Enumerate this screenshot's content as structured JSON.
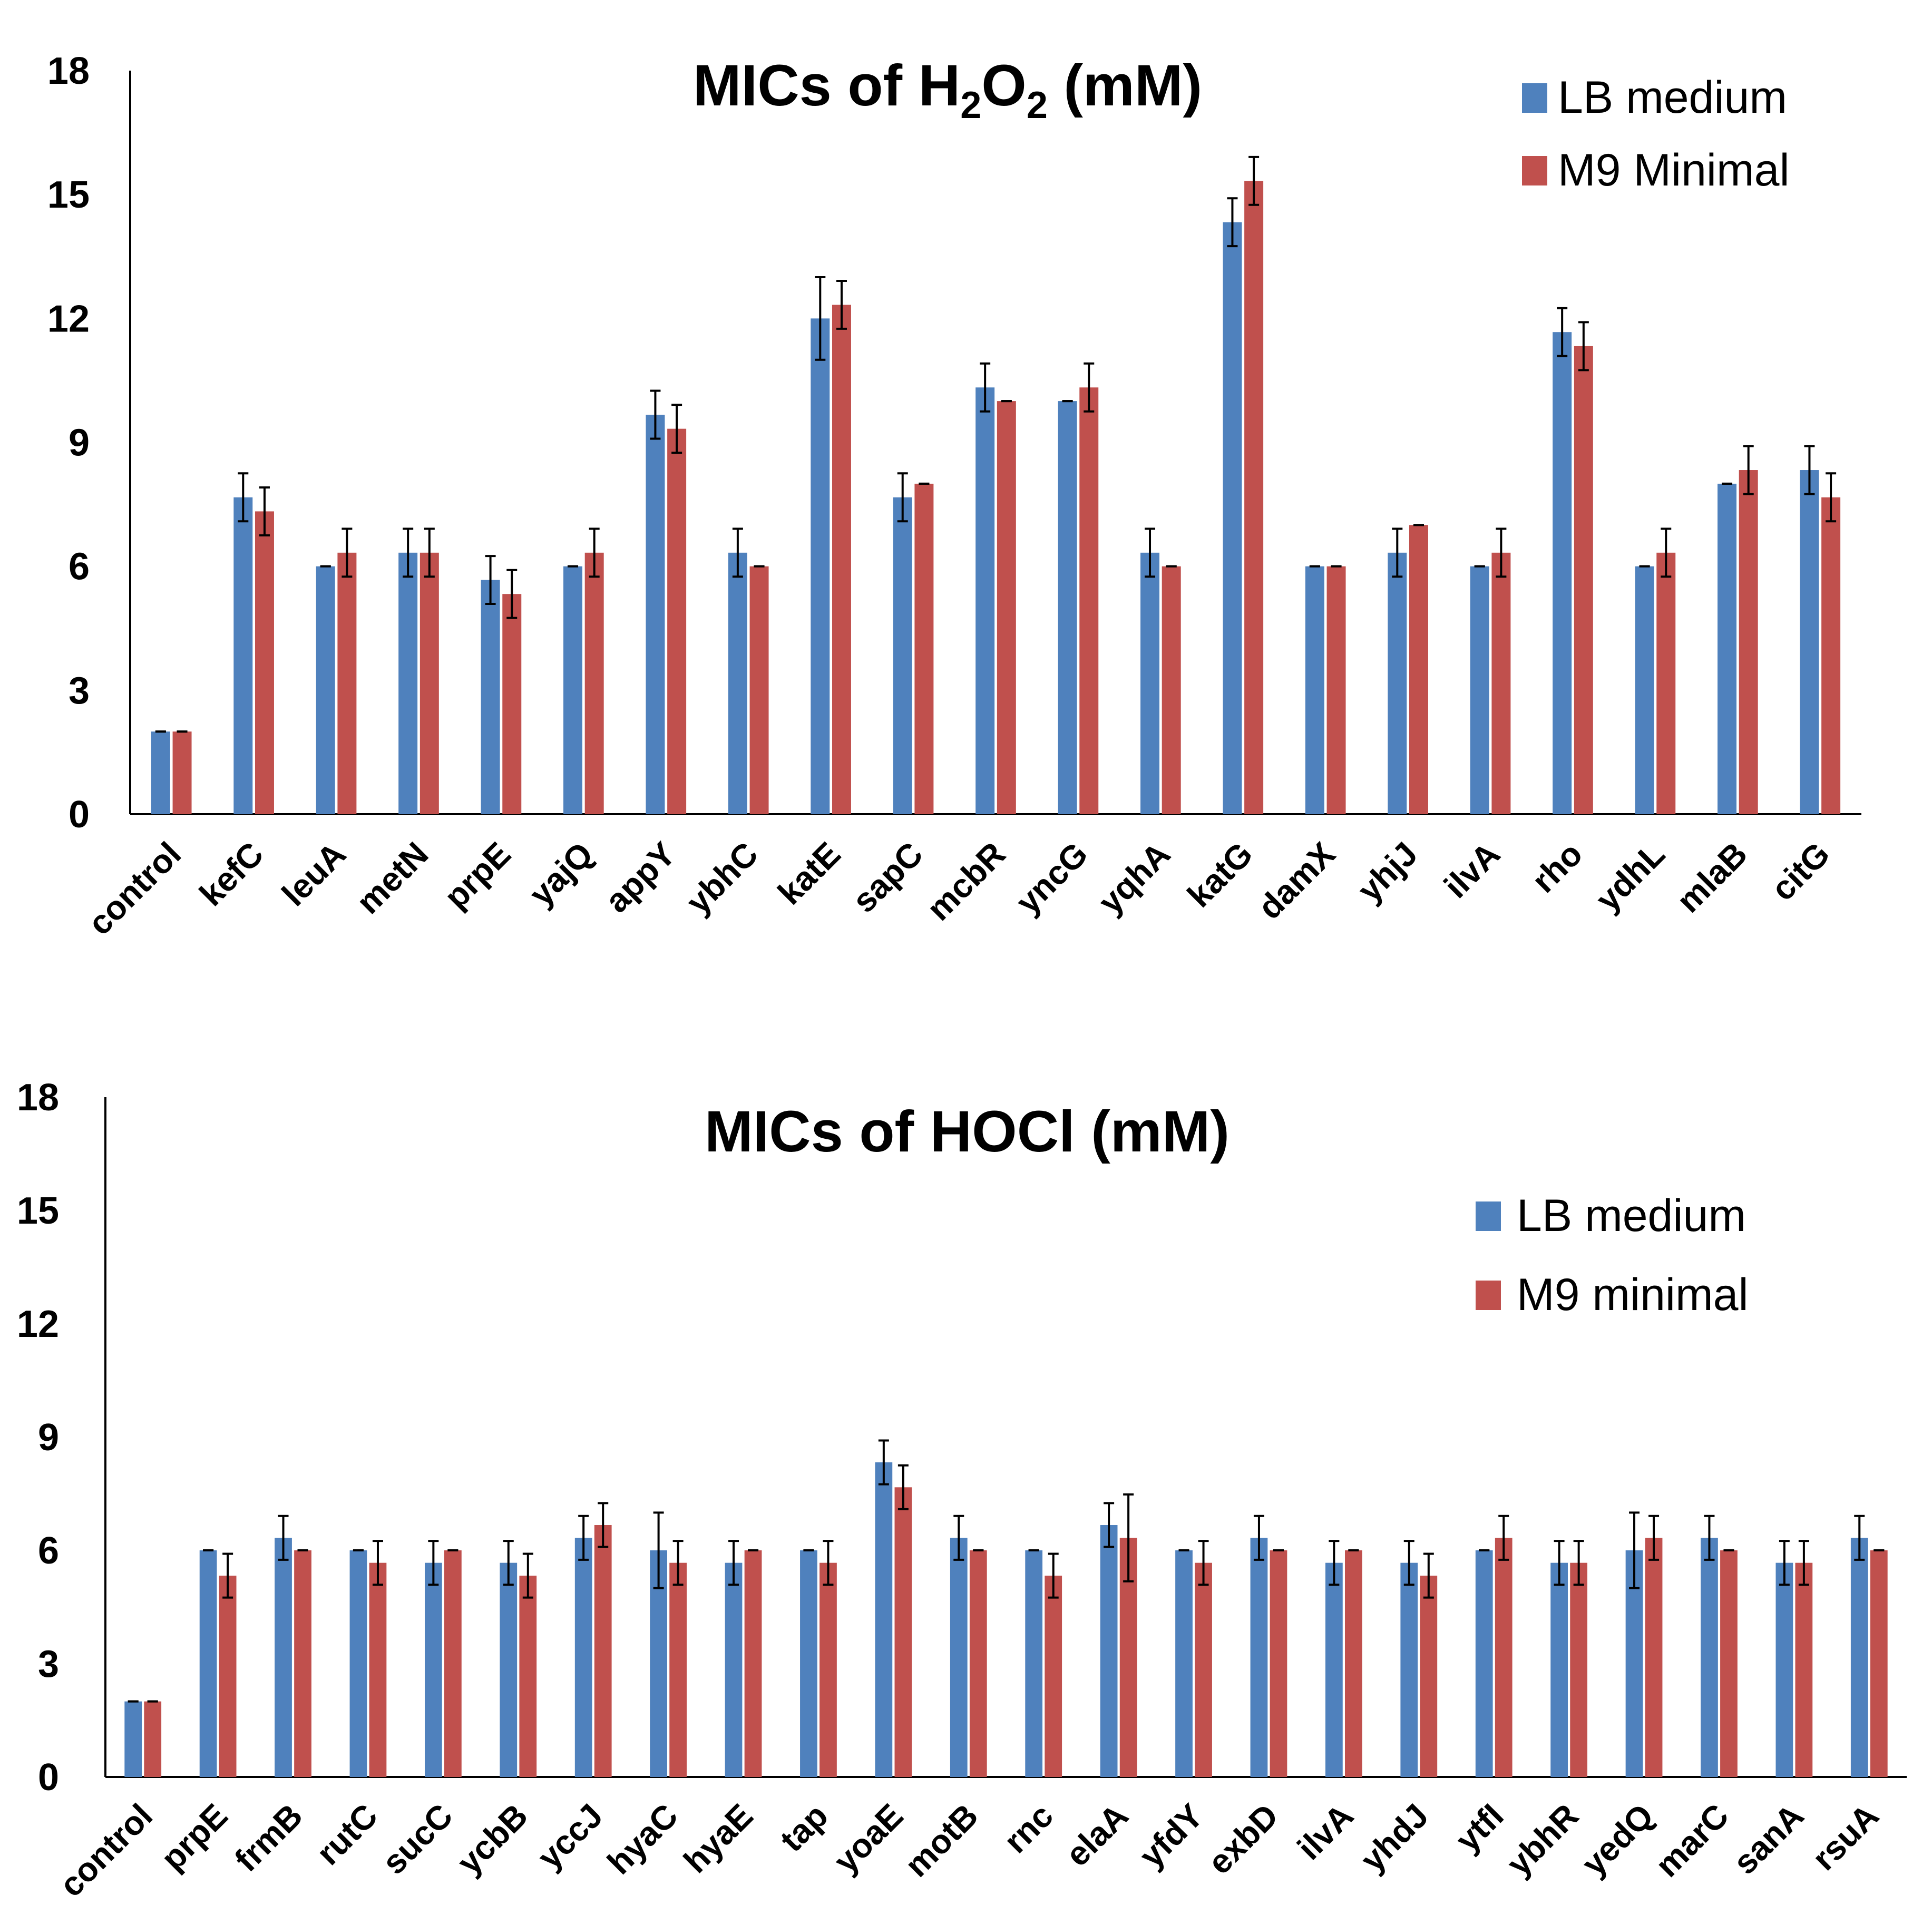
{
  "colors": {
    "lb": "#4F81BD",
    "m9": "#C0504D",
    "axis": "#000000",
    "error": "#000000"
  },
  "chart_data": [
    {
      "type": "bar",
      "title": "MICs of H2O2 (mM)",
      "title_parts": {
        "pre": "MICs of H",
        "sub1": "2",
        "mid": "O",
        "sub2": "2",
        "post": " (mM)"
      },
      "xlabel": "",
      "ylabel": "",
      "ylim": [
        0,
        18
      ],
      "yticks": [
        "0",
        "3",
        "6",
        "9",
        "12",
        "15",
        "18"
      ],
      "grid": false,
      "legend_position": "top-right",
      "categories": [
        "control",
        "kefC",
        "leuA",
        "metN",
        "prpE",
        "yajQ",
        "appY",
        "ybhC",
        "katE",
        "sapC",
        "mcbR",
        "yncG",
        "yqhA",
        "katG",
        "damX",
        "yhjJ",
        "ilvA",
        "rho",
        "ydhL",
        "mlaB",
        "citG"
      ],
      "series": [
        {
          "name": "LB medium",
          "color_key": "lb",
          "values": [
            2,
            7.67,
            6,
            6.33,
            5.67,
            6,
            9.67,
            6.33,
            12,
            7.67,
            10.33,
            10,
            6.33,
            14.33,
            6,
            6.33,
            6,
            11.67,
            6,
            8,
            8.33
          ],
          "errors": [
            0,
            0.58,
            0,
            0.58,
            0.58,
            0,
            0.58,
            0.58,
            1,
            0.58,
            0.58,
            0,
            0.58,
            0.58,
            0,
            0.58,
            0,
            0.58,
            0,
            0,
            0.58
          ]
        },
        {
          "name": "M9 Minimal",
          "color_key": "m9",
          "values": [
            2,
            7.33,
            6.33,
            6.33,
            5.33,
            6.33,
            9.33,
            6,
            12.33,
            8,
            10,
            10.33,
            6,
            15.33,
            6,
            7,
            6.33,
            11.33,
            6.33,
            8.33,
            7.67
          ],
          "errors": [
            0,
            0.58,
            0.58,
            0.58,
            0.58,
            0.58,
            0.58,
            0,
            0.58,
            0,
            0,
            0.58,
            0,
            0.58,
            0,
            0,
            0.58,
            0.58,
            0.58,
            0.58,
            0.58
          ]
        }
      ]
    },
    {
      "type": "bar",
      "title": "MICs of HOCl (mM)",
      "xlabel": "",
      "ylabel": "",
      "ylim": [
        0,
        18
      ],
      "yticks": [
        "0",
        "3",
        "6",
        "9",
        "12",
        "15",
        "18"
      ],
      "grid": false,
      "legend_position": "top-right",
      "categories": [
        "control",
        "prpE",
        "frmB",
        "rutC",
        "sucC",
        "ycbB",
        "yccJ",
        "hyaC",
        "hyaE",
        "tap",
        "yoaE",
        "motB",
        "rnc",
        "elaA",
        "yfdY",
        "exbD",
        "ilvA",
        "yhdJ",
        "ytfI",
        "ybhR",
        "yedQ",
        "marC",
        "sanA",
        "rsuA"
      ],
      "series": [
        {
          "name": "LB medium",
          "color_key": "lb",
          "values": [
            2,
            6,
            6.33,
            6,
            5.67,
            5.67,
            6.33,
            6,
            5.67,
            6,
            8.33,
            6.33,
            6,
            6.67,
            6,
            6.33,
            5.67,
            5.67,
            6,
            5.67,
            6,
            6.33,
            5.67,
            6.33
          ],
          "errors": [
            0,
            0,
            0.58,
            0,
            0.58,
            0.58,
            0.58,
            1,
            0.58,
            0,
            0.58,
            0.58,
            0,
            0.58,
            0,
            0.58,
            0.58,
            0.58,
            0,
            0.58,
            1,
            0.58,
            0.58,
            0.58
          ]
        },
        {
          "name": "M9 minimal",
          "color_key": "m9",
          "values": [
            2,
            5.33,
            6,
            5.67,
            6,
            5.33,
            6.67,
            5.67,
            6,
            5.67,
            7.67,
            6,
            5.33,
            6.33,
            5.67,
            6,
            6,
            5.33,
            6.33,
            5.67,
            6.33,
            6,
            5.67,
            6
          ],
          "errors": [
            0,
            0.58,
            0,
            0.58,
            0,
            0.58,
            0.58,
            0.58,
            0,
            0.58,
            0.58,
            0,
            0.58,
            1.15,
            0.58,
            0,
            0,
            0.58,
            0.58,
            0.58,
            0.58,
            0,
            0.58,
            0
          ]
        }
      ]
    }
  ]
}
